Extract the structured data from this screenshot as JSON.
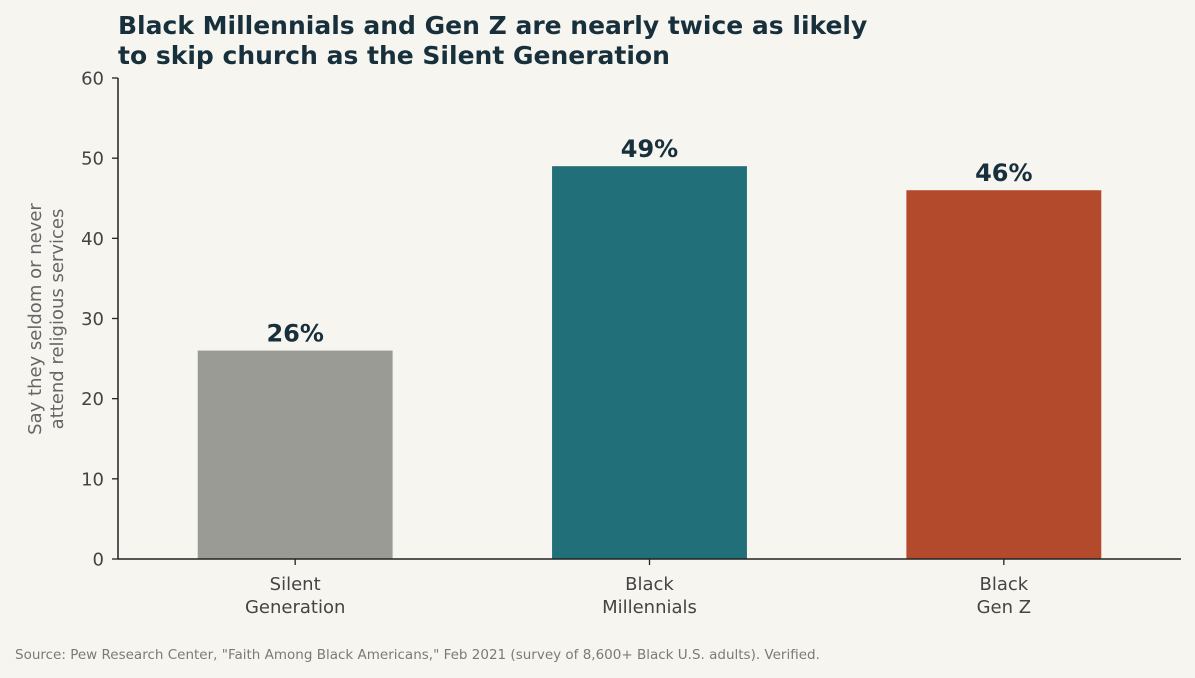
{
  "chart_data": {
    "type": "bar",
    "title_lines": [
      "Black Millennials and Gen Z are nearly twice as likely",
      "to skip church as the Silent Generation"
    ],
    "categories": [
      [
        "Silent",
        "Generation"
      ],
      [
        "Black",
        "Millennials"
      ],
      [
        "Black",
        "Gen Z"
      ]
    ],
    "values": [
      26,
      49,
      46
    ],
    "data_labels": [
      "26%",
      "49%",
      "46%"
    ],
    "colors": [
      "#9b9b96",
      "#216f78",
      "#b34a2b"
    ],
    "ylabel_lines": [
      "Say they seldom or never",
      "attend religious services"
    ],
    "xlabel": "",
    "ylim": [
      0,
      60
    ],
    "yticks": [
      0,
      10,
      20,
      30,
      40,
      50,
      60
    ],
    "grid": false,
    "legend": "none"
  },
  "source_note": "Source: Pew Research Center, \"Faith Among Black Americans,\" Feb 2021 (survey of 8,600+ Black U.S. adults). Verified."
}
